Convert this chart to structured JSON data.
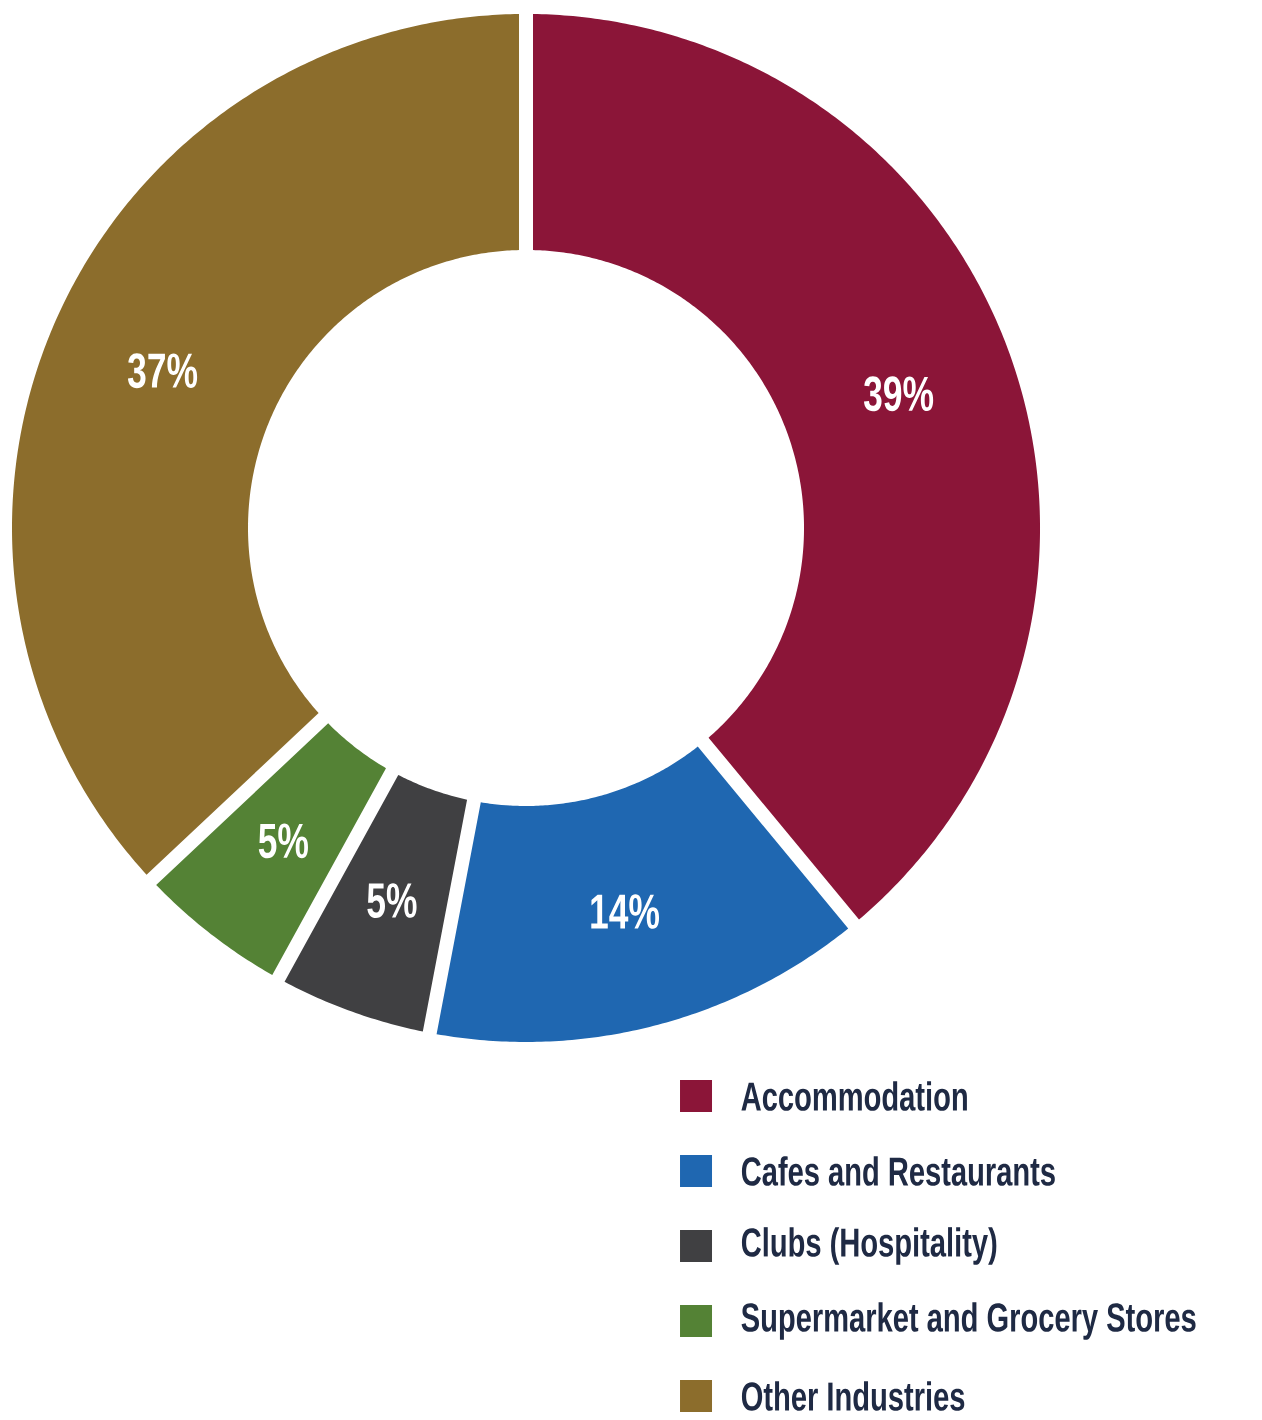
{
  "chart_data": {
    "type": "donut",
    "categories": [
      "Accommodation",
      "Cafes and Restaurants",
      "Clubs (Hospitality)",
      "Supermarket and Grocery Stores",
      "Other Industries"
    ],
    "values": [
      39,
      14,
      5,
      5,
      37
    ],
    "value_labels": [
      "39%",
      "14%",
      "5%",
      "5%",
      "37%"
    ],
    "colors": [
      "#8b1538",
      "#1f67b1",
      "#404042",
      "#548235",
      "#8c6d2c"
    ],
    "legend": "bottom right"
  }
}
